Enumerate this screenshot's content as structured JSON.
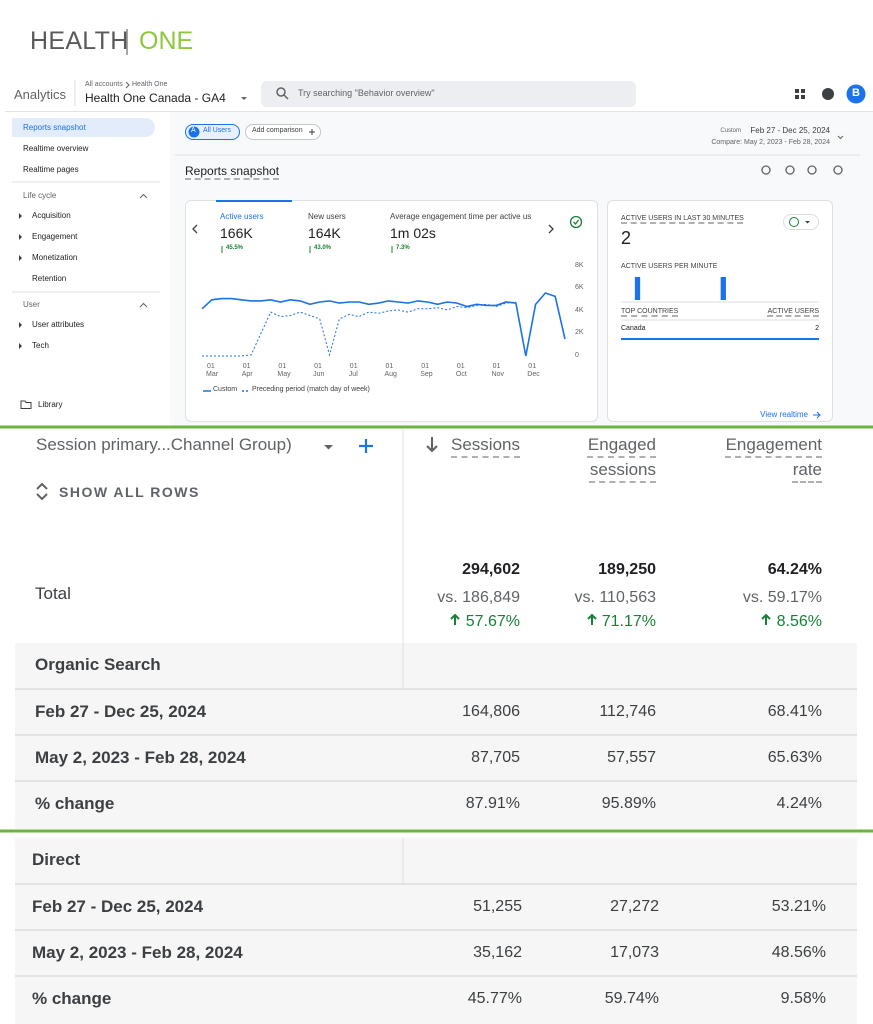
{
  "logo": {
    "left": "HEALTH",
    "right": "ONE"
  },
  "analytics": {
    "header": {
      "product": "Analytics",
      "account": "All accounts",
      "account_child": "Health One",
      "property": "Health One Canada - GA4",
      "search_placeholder": "Try searching \"Behavior overview\"",
      "avatar": "B"
    },
    "nav": [
      "Reports snapshot",
      "Realtime overview",
      "Realtime pages"
    ],
    "lifecycle": {
      "title": "Life cycle",
      "items": [
        "Acquisition",
        "Engagement",
        "Monetization",
        "Retention"
      ]
    },
    "user": {
      "title": "User",
      "items": [
        "User attributes",
        "Tech"
      ]
    },
    "library": "Library",
    "toolbar": {
      "segment_badge": "A",
      "segment": "All Users",
      "add_comparison": "Add comparison",
      "date_mode": "Custom",
      "date_range": "Feb 27 - Dec 25, 2024",
      "compare": "Compare: May 2, 2023 - Feb 28, 2024"
    },
    "page_title": "Reports snapshot",
    "metrics": [
      {
        "label": "Active users",
        "value": "166K",
        "change": "45.5%"
      },
      {
        "label": "New users",
        "value": "164K",
        "change": "43.0%"
      },
      {
        "label": "Average engagement time per active us",
        "value": "1m 02s",
        "change": "7.3%"
      }
    ],
    "realtime": {
      "title": "ACTIVE USERS IN LAST 30 MINUTES",
      "value": "2",
      "countries_header": "TOP COUNTRIES",
      "users_header": "ACTIVE USERS",
      "country": "Canada",
      "country_value": "2",
      "link": "View realtime"
    }
  },
  "chart_data": [
    {
      "type": "line",
      "xtick_labels": [
        [
          "01",
          "Mar"
        ],
        [
          "01",
          "Apr"
        ],
        [
          "01",
          "May"
        ],
        [
          "01",
          "Jun"
        ],
        [
          "01",
          "Jul"
        ],
        [
          "01",
          "Aug"
        ],
        [
          "01",
          "Sep"
        ],
        [
          "01",
          "Oct"
        ],
        [
          "01",
          "Nov"
        ],
        [
          "01",
          "Dec"
        ]
      ],
      "ylim": [
        0,
        8000
      ],
      "yticks": [
        0,
        {
          "value": 2000,
          "label": "2K"
        },
        {
          "value": 4000,
          "label": "4K"
        },
        {
          "value": 6000,
          "label": "6K"
        },
        {
          "value": 8000,
          "label": "8K"
        }
      ],
      "grid": false,
      "series": [
        {
          "name": "Custom",
          "color": "#1a73e8",
          "line_style": "solid",
          "values": [
            4200,
            5000,
            5100,
            5100,
            5000,
            4900,
            4900,
            5000,
            4800,
            5000,
            4900,
            4600,
            4800,
            4900,
            4700,
            4800,
            4800,
            4600,
            4700,
            4900,
            4800,
            4700,
            4900,
            4800,
            4600,
            4800,
            4700,
            4400,
            4600,
            4500,
            4500,
            4800,
            4700,
            0,
            4600,
            5600,
            5300,
            1500
          ]
        },
        {
          "name": "Preceding period (match day of week)",
          "color": "#1a73e8",
          "line_style": "dashed",
          "values": [
            0,
            0,
            0,
            0,
            0,
            100,
            2000,
            3900,
            3500,
            3600,
            3900,
            3600,
            3300,
            100,
            3300,
            3700,
            3500,
            3900,
            3800,
            4000,
            4100,
            3900,
            4200,
            4200,
            4300,
            4100,
            4400,
            4300,
            4500,
            4600,
            4400,
            4700,
            4800,
            null,
            null,
            null,
            null,
            null
          ]
        }
      ]
    },
    {
      "type": "bar",
      "title": "ACTIVE USERS PER MINUTE",
      "color": "#1a73e8",
      "values": [
        0,
        0,
        1,
        0,
        0,
        0,
        0,
        0,
        0,
        0,
        0,
        0,
        0,
        0,
        0,
        1,
        0,
        0,
        0,
        0,
        0,
        0,
        0,
        0,
        0,
        0,
        0,
        0,
        0,
        0
      ]
    }
  ],
  "table": {
    "dimension": "Session primary...Channel Group)",
    "show_all": "SHOW ALL ROWS",
    "columns": [
      "Sessions",
      "Engaged sessions",
      "Engagement rate"
    ],
    "total": {
      "label": "Total",
      "values": [
        "294,602",
        "189,250",
        "64.24%"
      ],
      "compare": [
        "vs. 186,849",
        "vs. 110,563",
        "vs. 59.17%"
      ],
      "change": [
        "57.67%",
        "71.17%",
        "8.56%"
      ]
    },
    "groups": [
      {
        "name": "Organic Search",
        "rows": [
          [
            "Feb 27 - Dec 25, 2024",
            "164,806",
            "112,746",
            "68.41%"
          ],
          [
            "May 2, 2023 - Feb 28, 2024",
            "87,705",
            "57,557",
            "65.63%"
          ],
          [
            "% change",
            "87.91%",
            "95.89%",
            "4.24%"
          ]
        ]
      },
      {
        "name": "Direct",
        "rows": [
          [
            "Feb 27 - Dec 25, 2024",
            "51,255",
            "27,272",
            "53.21%"
          ],
          [
            "May 2, 2023 - Feb 28, 2024",
            "35,162",
            "17,073",
            "48.56%"
          ],
          [
            "% change",
            "45.77%",
            "59.74%",
            "9.58%"
          ]
        ]
      }
    ]
  }
}
